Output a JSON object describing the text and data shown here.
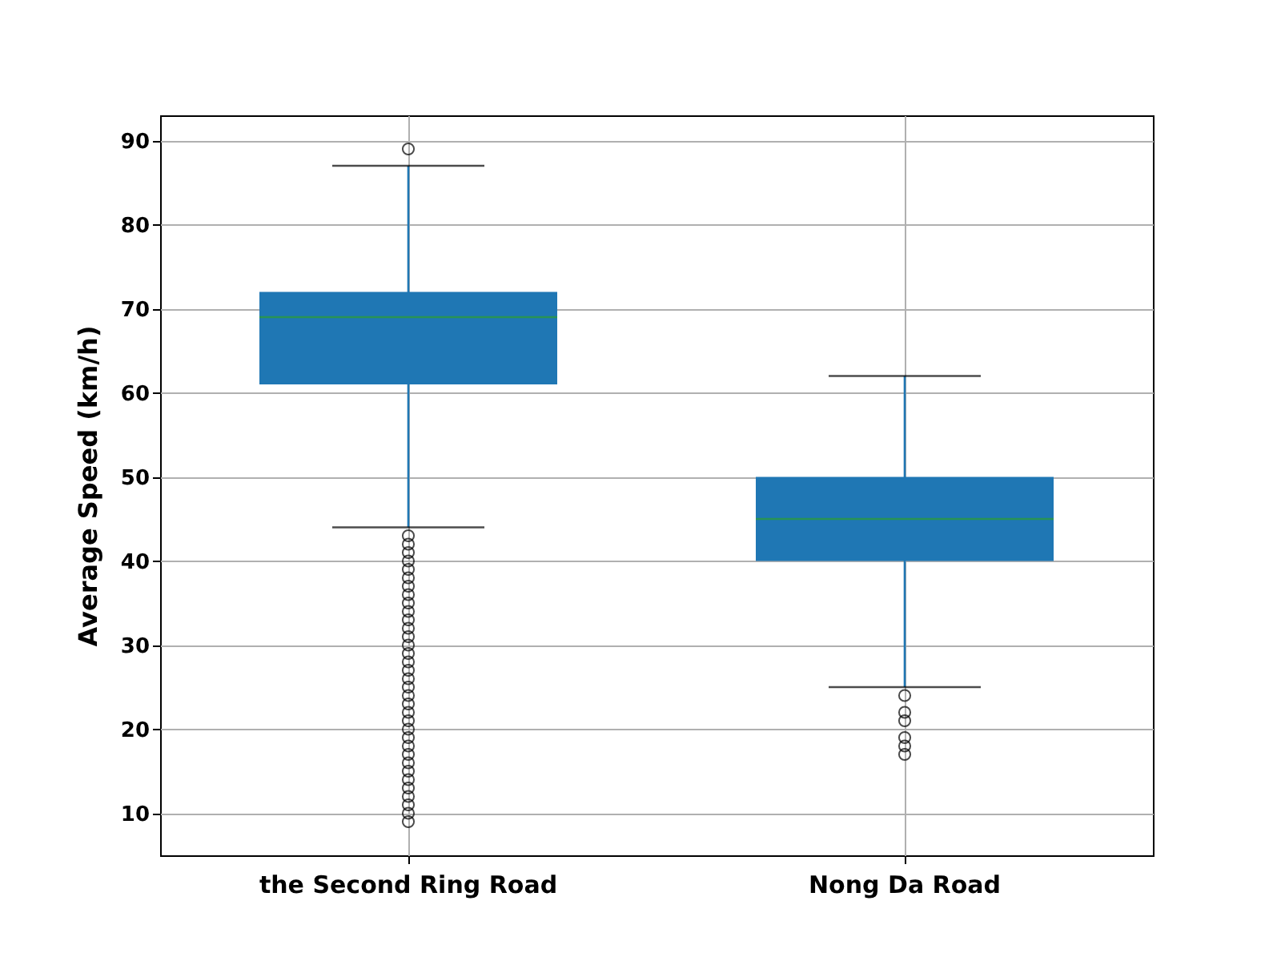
{
  "chart_data": {
    "type": "box",
    "categories": [
      "the Second Ring Road",
      "Nong Da Road"
    ],
    "ylabel": "Average Speed (km/h)",
    "ylim": [
      5,
      93
    ],
    "yticks": [
      10,
      20,
      30,
      40,
      50,
      60,
      70,
      80,
      90
    ],
    "grid": true,
    "color": "#1f77b4",
    "boxes": [
      {
        "low": 44,
        "q1": 61,
        "median": 69,
        "q3": 72,
        "high": 87,
        "outliers": [
          89,
          9,
          10,
          11,
          12,
          13,
          14,
          15,
          16,
          17,
          18,
          19,
          20,
          21,
          22,
          23,
          24,
          25,
          26,
          27,
          28,
          29,
          30,
          31,
          32,
          33,
          34,
          35,
          36,
          37,
          38,
          39,
          40,
          41,
          42,
          43
        ]
      },
      {
        "low": 25,
        "q1": 40,
        "median": 45,
        "q3": 50,
        "high": 62,
        "outliers": [
          24,
          22,
          21,
          19,
          18,
          17
        ]
      }
    ]
  }
}
